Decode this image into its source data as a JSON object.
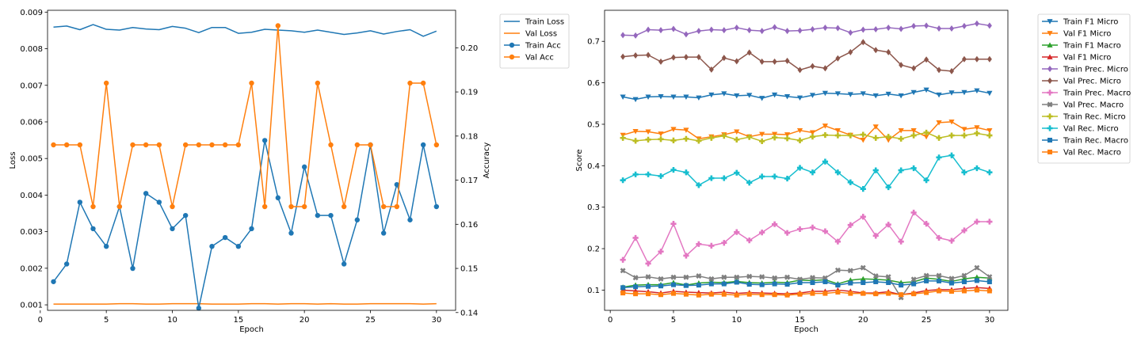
{
  "chart_data": [
    {
      "type": "line",
      "title": "",
      "xlabel": "Epoch",
      "ylabel": "Loss",
      "y2label": "Accuracy",
      "xlim": [
        0.55,
        31.45
      ],
      "xticks": [
        0,
        5,
        10,
        15,
        20,
        25,
        30
      ],
      "ylim": [
        0.00085,
        0.00905
      ],
      "yticks": [
        0.001,
        0.002,
        0.003,
        0.004,
        0.005,
        0.006,
        0.007,
        0.008,
        0.009
      ],
      "ytick_labels": [
        "0.001",
        "0.002",
        "0.003",
        "0.004",
        "0.005",
        "0.006",
        "0.007",
        "0.008",
        "0.009"
      ],
      "y2lim": [
        0.1405,
        0.2085
      ],
      "y2ticks": [
        0.14,
        0.15,
        0.16,
        0.17,
        0.18,
        0.19,
        0.2
      ],
      "y2tick_labels": [
        "0.14",
        "0.15",
        "0.16",
        "0.17",
        "0.18",
        "0.19",
        "0.20"
      ],
      "grid": false,
      "legend_position": "outside-top-right",
      "x": [
        1,
        2,
        3,
        4,
        5,
        6,
        7,
        8,
        9,
        10,
        11,
        12,
        13,
        14,
        15,
        16,
        17,
        18,
        19,
        20,
        21,
        22,
        23,
        24,
        25,
        26,
        27,
        28,
        29,
        30
      ],
      "series": [
        {
          "name": "Train Loss",
          "axis": "left",
          "color": "#1f77b4",
          "marker": "none",
          "values": [
            0.00859,
            0.00862,
            0.00852,
            0.00866,
            0.00853,
            0.00851,
            0.00858,
            0.00854,
            0.00852,
            0.00861,
            0.00856,
            0.00844,
            0.00858,
            0.00858,
            0.00842,
            0.00845,
            0.00853,
            0.00851,
            0.00849,
            0.00845,
            0.00851,
            0.00845,
            0.00839,
            0.00843,
            0.00849,
            0.0084,
            0.00847,
            0.00852,
            0.00834,
            0.00848
          ]
        },
        {
          "name": "Val Loss",
          "axis": "left",
          "color": "#ff7f0e",
          "marker": "none",
          "values": [
            0.00102,
            0.00102,
            0.00102,
            0.00102,
            0.00102,
            0.00103,
            0.00103,
            0.00102,
            0.00102,
            0.00103,
            0.00103,
            0.00103,
            0.00102,
            0.00102,
            0.00102,
            0.00103,
            0.00103,
            0.00102,
            0.00103,
            0.00103,
            0.00102,
            0.00103,
            0.00102,
            0.00102,
            0.00103,
            0.00103,
            0.00103,
            0.00103,
            0.00102,
            0.00103
          ]
        },
        {
          "name": "Train Acc",
          "axis": "right",
          "color": "#1f77b4",
          "marker": "circle",
          "values": [
            0.147,
            0.151,
            0.165,
            0.159,
            0.155,
            0.164,
            0.15,
            0.167,
            0.165,
            0.159,
            0.162,
            0.141,
            0.155,
            0.157,
            0.155,
            0.159,
            0.179,
            0.166,
            0.158,
            0.173,
            0.162,
            0.162,
            0.151,
            0.161,
            0.178,
            0.158,
            0.169,
            0.161,
            0.178,
            0.164
          ]
        },
        {
          "name": "Val Acc",
          "axis": "right",
          "color": "#ff7f0e",
          "marker": "circle",
          "values": [
            0.178,
            0.178,
            0.178,
            0.164,
            0.192,
            0.164,
            0.178,
            0.178,
            0.178,
            0.164,
            0.178,
            0.178,
            0.178,
            0.178,
            0.178,
            0.192,
            0.164,
            0.205,
            0.164,
            0.164,
            0.192,
            0.178,
            0.164,
            0.178,
            0.178,
            0.164,
            0.164,
            0.192,
            0.192,
            0.178
          ]
        }
      ]
    },
    {
      "type": "line",
      "title": "",
      "xlabel": "Epoch",
      "ylabel": "Score",
      "xlim": [
        -0.45,
        31.45
      ],
      "xticks": [
        0,
        5,
        10,
        15,
        20,
        25,
        30
      ],
      "ylim": [
        0.0512,
        0.7749
      ],
      "yticks": [
        0.1,
        0.2,
        0.3,
        0.4,
        0.5,
        0.6,
        0.7
      ],
      "ytick_labels": [
        "0.1",
        "0.2",
        "0.3",
        "0.4",
        "0.5",
        "0.6",
        "0.7"
      ],
      "grid": false,
      "legend_position": "outside-top-right",
      "x": [
        1,
        2,
        3,
        4,
        5,
        6,
        7,
        8,
        9,
        10,
        11,
        12,
        13,
        14,
        15,
        16,
        17,
        18,
        19,
        20,
        21,
        22,
        23,
        24,
        25,
        26,
        27,
        28,
        29,
        30
      ],
      "series": [
        {
          "name": "Train F1 Micro",
          "color": "#1f77b4",
          "marker": "tri-down",
          "values": [
            0.566,
            0.56,
            0.566,
            0.567,
            0.566,
            0.566,
            0.564,
            0.571,
            0.574,
            0.569,
            0.57,
            0.563,
            0.571,
            0.567,
            0.564,
            0.57,
            0.575,
            0.574,
            0.572,
            0.574,
            0.569,
            0.573,
            0.569,
            0.577,
            0.583,
            0.571,
            0.576,
            0.577,
            0.581,
            0.575
          ]
        },
        {
          "name": "Val F1 Micro",
          "color": "#ff7f0e",
          "marker": "tri-down",
          "values": [
            0.474,
            0.483,
            0.482,
            0.477,
            0.488,
            0.486,
            0.465,
            0.47,
            0.475,
            0.482,
            0.47,
            0.476,
            0.476,
            0.475,
            0.485,
            0.48,
            0.496,
            0.485,
            0.474,
            0.462,
            0.494,
            0.462,
            0.485,
            0.485,
            0.47,
            0.504,
            0.506,
            0.488,
            0.492,
            0.485
          ]
        },
        {
          "name": "Train F1 Macro",
          "color": "#2ca02c",
          "marker": "tri-up",
          "values": [
            0.107,
            0.112,
            0.113,
            0.113,
            0.118,
            0.112,
            0.117,
            0.119,
            0.118,
            0.121,
            0.118,
            0.117,
            0.119,
            0.118,
            0.124,
            0.123,
            0.125,
            0.115,
            0.124,
            0.127,
            0.126,
            0.124,
            0.118,
            0.12,
            0.129,
            0.126,
            0.121,
            0.127,
            0.131,
            0.129
          ]
        },
        {
          "name": "Val F1 Micro",
          "color": "#d62728",
          "marker": "tri-up",
          "values": [
            0.1,
            0.098,
            0.096,
            0.093,
            0.097,
            0.095,
            0.094,
            0.093,
            0.095,
            0.092,
            0.094,
            0.093,
            0.092,
            0.091,
            0.093,
            0.097,
            0.097,
            0.1,
            0.097,
            0.093,
            0.093,
            0.096,
            0.089,
            0.093,
            0.099,
            0.101,
            0.101,
            0.104,
            0.106,
            0.104
          ]
        },
        {
          "name": "Train Prec. Micro",
          "color": "#9467bd",
          "marker": "diamond",
          "values": [
            0.715,
            0.714,
            0.728,
            0.727,
            0.73,
            0.717,
            0.725,
            0.728,
            0.727,
            0.733,
            0.727,
            0.725,
            0.734,
            0.725,
            0.726,
            0.729,
            0.733,
            0.732,
            0.721,
            0.728,
            0.729,
            0.733,
            0.73,
            0.737,
            0.738,
            0.731,
            0.731,
            0.737,
            0.743,
            0.738
          ]
        },
        {
          "name": "Val Prec. Micro",
          "color": "#8c564b",
          "marker": "diamond",
          "values": [
            0.663,
            0.666,
            0.667,
            0.651,
            0.661,
            0.662,
            0.662,
            0.632,
            0.66,
            0.652,
            0.673,
            0.651,
            0.651,
            0.653,
            0.631,
            0.64,
            0.635,
            0.659,
            0.674,
            0.698,
            0.679,
            0.674,
            0.643,
            0.635,
            0.656,
            0.631,
            0.628,
            0.657,
            0.657,
            0.657
          ]
        },
        {
          "name": "Train Prec. Macro",
          "color": "#e377c2",
          "marker": "plus-filled",
          "values": [
            0.173,
            0.226,
            0.164,
            0.193,
            0.26,
            0.183,
            0.211,
            0.207,
            0.214,
            0.24,
            0.22,
            0.239,
            0.259,
            0.238,
            0.247,
            0.251,
            0.242,
            0.217,
            0.257,
            0.277,
            0.231,
            0.258,
            0.217,
            0.287,
            0.26,
            0.226,
            0.219,
            0.244,
            0.265,
            0.265
          ]
        },
        {
          "name": "Val Prec. Macro",
          "color": "#7f7f7f",
          "marker": "x-filled",
          "values": [
            0.147,
            0.13,
            0.132,
            0.127,
            0.131,
            0.131,
            0.134,
            0.127,
            0.131,
            0.131,
            0.133,
            0.132,
            0.129,
            0.131,
            0.126,
            0.13,
            0.129,
            0.148,
            0.147,
            0.154,
            0.134,
            0.132,
            0.082,
            0.126,
            0.135,
            0.135,
            0.128,
            0.135,
            0.154,
            0.132
          ]
        },
        {
          "name": "Train Rec. Micro",
          "color": "#bcbd22",
          "marker": "plus-filled",
          "values": [
            0.467,
            0.46,
            0.463,
            0.464,
            0.461,
            0.465,
            0.46,
            0.467,
            0.472,
            0.463,
            0.469,
            0.459,
            0.468,
            0.466,
            0.461,
            0.47,
            0.474,
            0.473,
            0.473,
            0.475,
            0.467,
            0.47,
            0.465,
            0.473,
            0.48,
            0.467,
            0.473,
            0.473,
            0.478,
            0.473
          ]
        },
        {
          "name": "Val Rec. Micro",
          "color": "#17becf",
          "marker": "plus-filled",
          "values": [
            0.365,
            0.379,
            0.379,
            0.375,
            0.39,
            0.384,
            0.353,
            0.37,
            0.37,
            0.383,
            0.359,
            0.374,
            0.374,
            0.369,
            0.395,
            0.384,
            0.41,
            0.384,
            0.36,
            0.344,
            0.389,
            0.348,
            0.389,
            0.394,
            0.365,
            0.42,
            0.425,
            0.384,
            0.394,
            0.384
          ]
        },
        {
          "name": "Train Rec. Macro",
          "color": "#1f77b4",
          "marker": "square",
          "values": [
            0.106,
            0.108,
            0.109,
            0.11,
            0.113,
            0.111,
            0.112,
            0.115,
            0.115,
            0.119,
            0.114,
            0.113,
            0.115,
            0.114,
            0.118,
            0.118,
            0.12,
            0.112,
            0.117,
            0.118,
            0.12,
            0.118,
            0.112,
            0.115,
            0.122,
            0.122,
            0.117,
            0.12,
            0.123,
            0.12
          ]
        },
        {
          "name": "Val Rec. Macro",
          "color": "#ff7f0e",
          "marker": "square",
          "values": [
            0.093,
            0.091,
            0.091,
            0.089,
            0.092,
            0.09,
            0.088,
            0.09,
            0.09,
            0.088,
            0.09,
            0.089,
            0.089,
            0.088,
            0.09,
            0.092,
            0.092,
            0.095,
            0.092,
            0.092,
            0.091,
            0.092,
            0.089,
            0.091,
            0.094,
            0.098,
            0.097,
            0.098,
            0.1,
            0.098
          ]
        }
      ]
    }
  ]
}
